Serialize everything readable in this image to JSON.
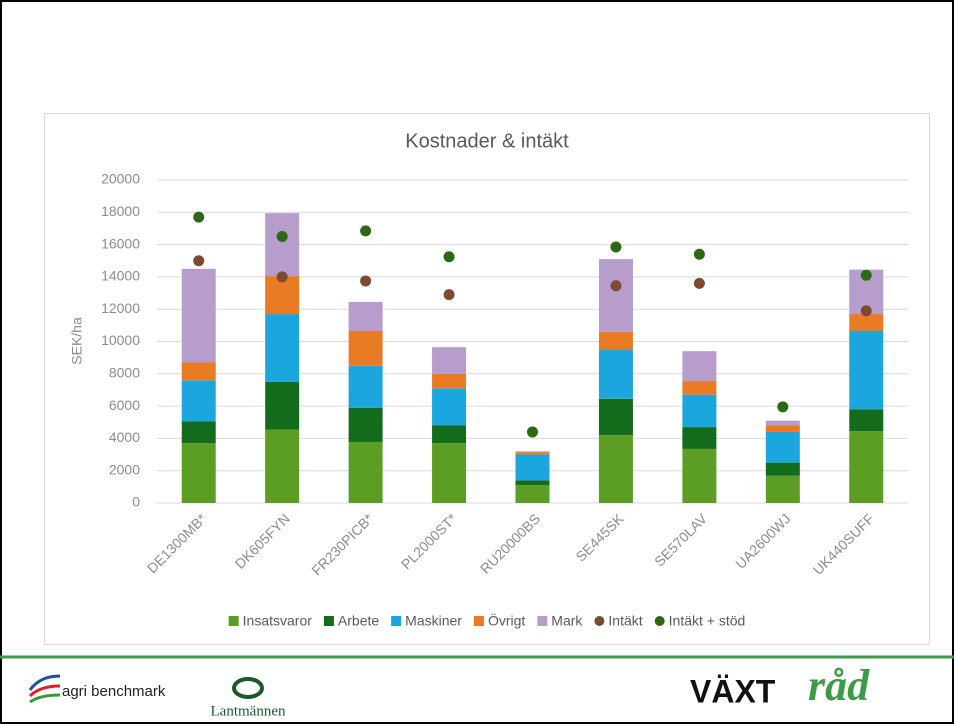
{
  "chart_data": {
    "type": "bar",
    "stacked": true,
    "title": "Kostnader & intäkt",
    "y_label": "SEK/ha",
    "categories": [
      "DE1300MB*",
      "DK605FYN",
      "FR230PICB*",
      "PL2000ST*",
      "RU20000BS",
      "SE445SK",
      "SE570LAV",
      "UA2600WJ",
      "UK440SUFF"
    ],
    "series": [
      {
        "name": "Insatsvaror",
        "color": "#5b9e23",
        "type": "bar",
        "values": [
          3700,
          4550,
          3780,
          3700,
          1100,
          4200,
          3350,
          1700,
          4450
        ]
      },
      {
        "name": "Arbete",
        "color": "#136b1c",
        "type": "bar",
        "values": [
          1350,
          2950,
          2120,
          1100,
          300,
          2250,
          1350,
          800,
          1350
        ]
      },
      {
        "name": "Maskiner",
        "color": "#1ba7de",
        "type": "bar",
        "values": [
          2550,
          4200,
          2600,
          2300,
          1600,
          3050,
          2000,
          1900,
          4850
        ]
      },
      {
        "name": "Övrigt",
        "color": "#e97b25",
        "type": "bar",
        "values": [
          1100,
          2350,
          2150,
          900,
          150,
          1100,
          850,
          400,
          1050
        ]
      },
      {
        "name": "Mark",
        "color": "#b79dcb",
        "type": "bar",
        "values": [
          5800,
          3900,
          1800,
          1650,
          50,
          4500,
          1850,
          300,
          2750
        ]
      },
      {
        "name": "Intäkt",
        "color": "#7b4a31",
        "type": "scatter",
        "values": [
          15000,
          14000,
          13750,
          12900,
          null,
          13450,
          13600,
          null,
          11900
        ]
      },
      {
        "name": "Intäkt + stöd",
        "color": "#2d6813",
        "type": "scatter",
        "values": [
          17700,
          16500,
          16850,
          15250,
          4400,
          15850,
          15400,
          5950,
          14100
        ]
      }
    ],
    "ylim": [
      0,
      20000
    ],
    "yticks": [
      0,
      2000,
      4000,
      6000,
      8000,
      10000,
      12000,
      14000,
      16000,
      18000,
      20000
    ],
    "grid": true,
    "legend": "bottom"
  },
  "footer": {
    "logo_left": "agri benchmark",
    "logo_middle": "Lantmännen",
    "logo_right_a": "VÄXT",
    "logo_right_b": "råd"
  }
}
